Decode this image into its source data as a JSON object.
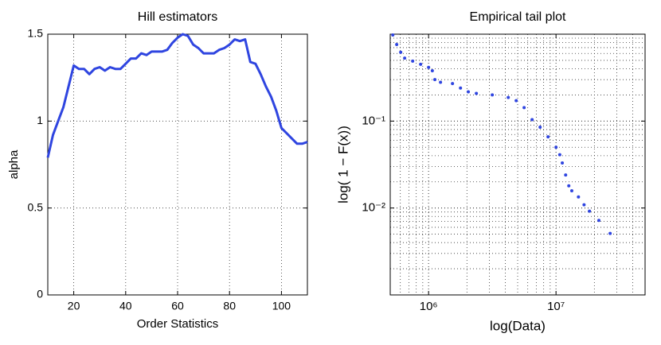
{
  "chart_data": [
    {
      "type": "line",
      "title": "Hill estimators",
      "xlabel": "Order Statistics",
      "ylabel": "alpha",
      "x": [
        10,
        12,
        14,
        16,
        18,
        20,
        22,
        24,
        26,
        28,
        30,
        32,
        34,
        36,
        38,
        40,
        42,
        44,
        46,
        48,
        50,
        52,
        54,
        56,
        58,
        60,
        62,
        64,
        66,
        68,
        70,
        72,
        74,
        76,
        78,
        80,
        82,
        84,
        86,
        88,
        90,
        92,
        94,
        96,
        98,
        100,
        102,
        104,
        106,
        108,
        110
      ],
      "values": [
        0.79,
        0.92,
        1.0,
        1.08,
        1.2,
        1.32,
        1.3,
        1.3,
        1.27,
        1.3,
        1.31,
        1.29,
        1.31,
        1.3,
        1.3,
        1.33,
        1.36,
        1.36,
        1.39,
        1.38,
        1.4,
        1.4,
        1.4,
        1.41,
        1.45,
        1.48,
        1.5,
        1.49,
        1.44,
        1.42,
        1.39,
        1.39,
        1.39,
        1.41,
        1.42,
        1.44,
        1.47,
        1.46,
        1.47,
        1.34,
        1.33,
        1.27,
        1.2,
        1.14,
        1.06,
        0.96,
        0.93,
        0.9,
        0.87,
        0.87,
        0.88
      ],
      "color": "#2f45e0",
      "xlim": [
        10,
        110
      ],
      "ylim": [
        0,
        1.5
      ],
      "xticks": [
        20,
        40,
        60,
        80,
        100
      ],
      "yticks": [
        0,
        0.5,
        1,
        1.5
      ],
      "grid": true
    },
    {
      "type": "scatter",
      "title": "Empirical tail plot",
      "xlabel": "log(Data)",
      "ylabel": "log( 1 − F(x))",
      "x": [
        524000,
        562000,
        604000,
        649000,
        750000,
        866000,
        1000000,
        1070000,
        1120000,
        1240000,
        1540000,
        1780000,
        2050000,
        2370000,
        3160000,
        4220000,
        4870000,
        5620000,
        6490000,
        7500000,
        8660000,
        10000000,
        10700000,
        11200000,
        11900000,
        12600000,
        13300000,
        15000000,
        16600000,
        18300000,
        21700000,
        26600000
      ],
      "values": [
        0.98,
        0.76,
        0.62,
        0.53,
        0.49,
        0.45,
        0.415,
        0.38,
        0.3,
        0.28,
        0.27,
        0.24,
        0.217,
        0.208,
        0.2,
        0.187,
        0.172,
        0.143,
        0.104,
        0.085,
        0.066,
        0.05,
        0.041,
        0.033,
        0.024,
        0.018,
        0.0158,
        0.0134,
        0.0109,
        0.0092,
        0.0072,
        0.0051
      ],
      "color": "#2f45e0",
      "xscale": "log",
      "yscale": "log",
      "xlim": [
        500000,
        50000000
      ],
      "ylim": [
        0.001,
        1
      ],
      "xticks": [
        {
          "value": 1000000,
          "label": "10⁶"
        },
        {
          "value": 10000000,
          "label": "10⁷"
        }
      ],
      "yticks": [
        {
          "value": 0.01,
          "label": "10⁻²"
        },
        {
          "value": 0.1,
          "label": "10⁻¹"
        }
      ],
      "grid": true,
      "minor_grid": true
    }
  ]
}
